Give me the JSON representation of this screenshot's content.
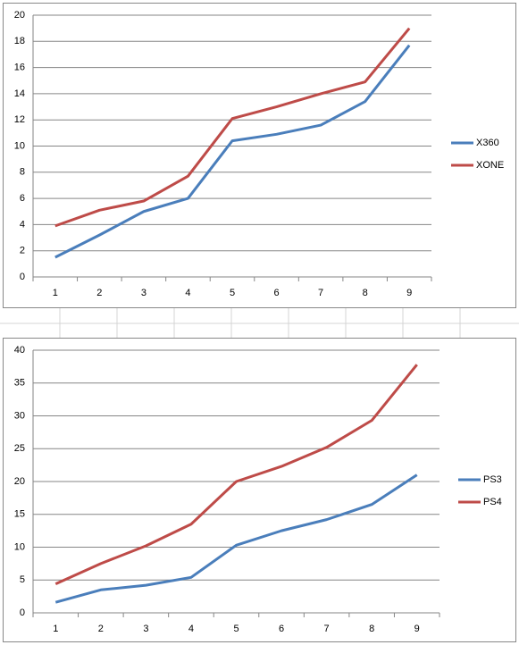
{
  "chart_data": [
    {
      "type": "line",
      "categories": [
        "1",
        "2",
        "3",
        "4",
        "5",
        "6",
        "7",
        "8",
        "9"
      ],
      "series": [
        {
          "name": "X360",
          "color": "#4a7ebb",
          "values": [
            1.5,
            3.2,
            5.0,
            6.0,
            10.4,
            10.9,
            11.6,
            13.4,
            17.7
          ]
        },
        {
          "name": "XONE",
          "color": "#be4b48",
          "values": [
            3.9,
            5.1,
            5.8,
            7.7,
            12.1,
            13.0,
            14.0,
            14.9,
            19.0
          ]
        }
      ],
      "ylim": [
        0,
        20
      ],
      "yticks": [
        0,
        2,
        4,
        6,
        8,
        10,
        12,
        14,
        16,
        18,
        20
      ],
      "grid": true,
      "legend": "right"
    },
    {
      "type": "line",
      "categories": [
        "1",
        "2",
        "3",
        "4",
        "5",
        "6",
        "7",
        "8",
        "9"
      ],
      "series": [
        {
          "name": "PS3",
          "color": "#4a7ebb",
          "values": [
            1.6,
            3.5,
            4.2,
            5.4,
            10.3,
            12.5,
            14.2,
            16.5,
            21.0
          ]
        },
        {
          "name": "PS4",
          "color": "#be4b48",
          "values": [
            4.4,
            7.5,
            10.2,
            13.5,
            20.0,
            22.3,
            25.2,
            29.3,
            37.8
          ]
        }
      ],
      "ylim": [
        0,
        40
      ],
      "yticks": [
        0,
        5,
        10,
        15,
        20,
        25,
        30,
        35,
        40
      ],
      "grid": true,
      "legend": "right"
    }
  ]
}
